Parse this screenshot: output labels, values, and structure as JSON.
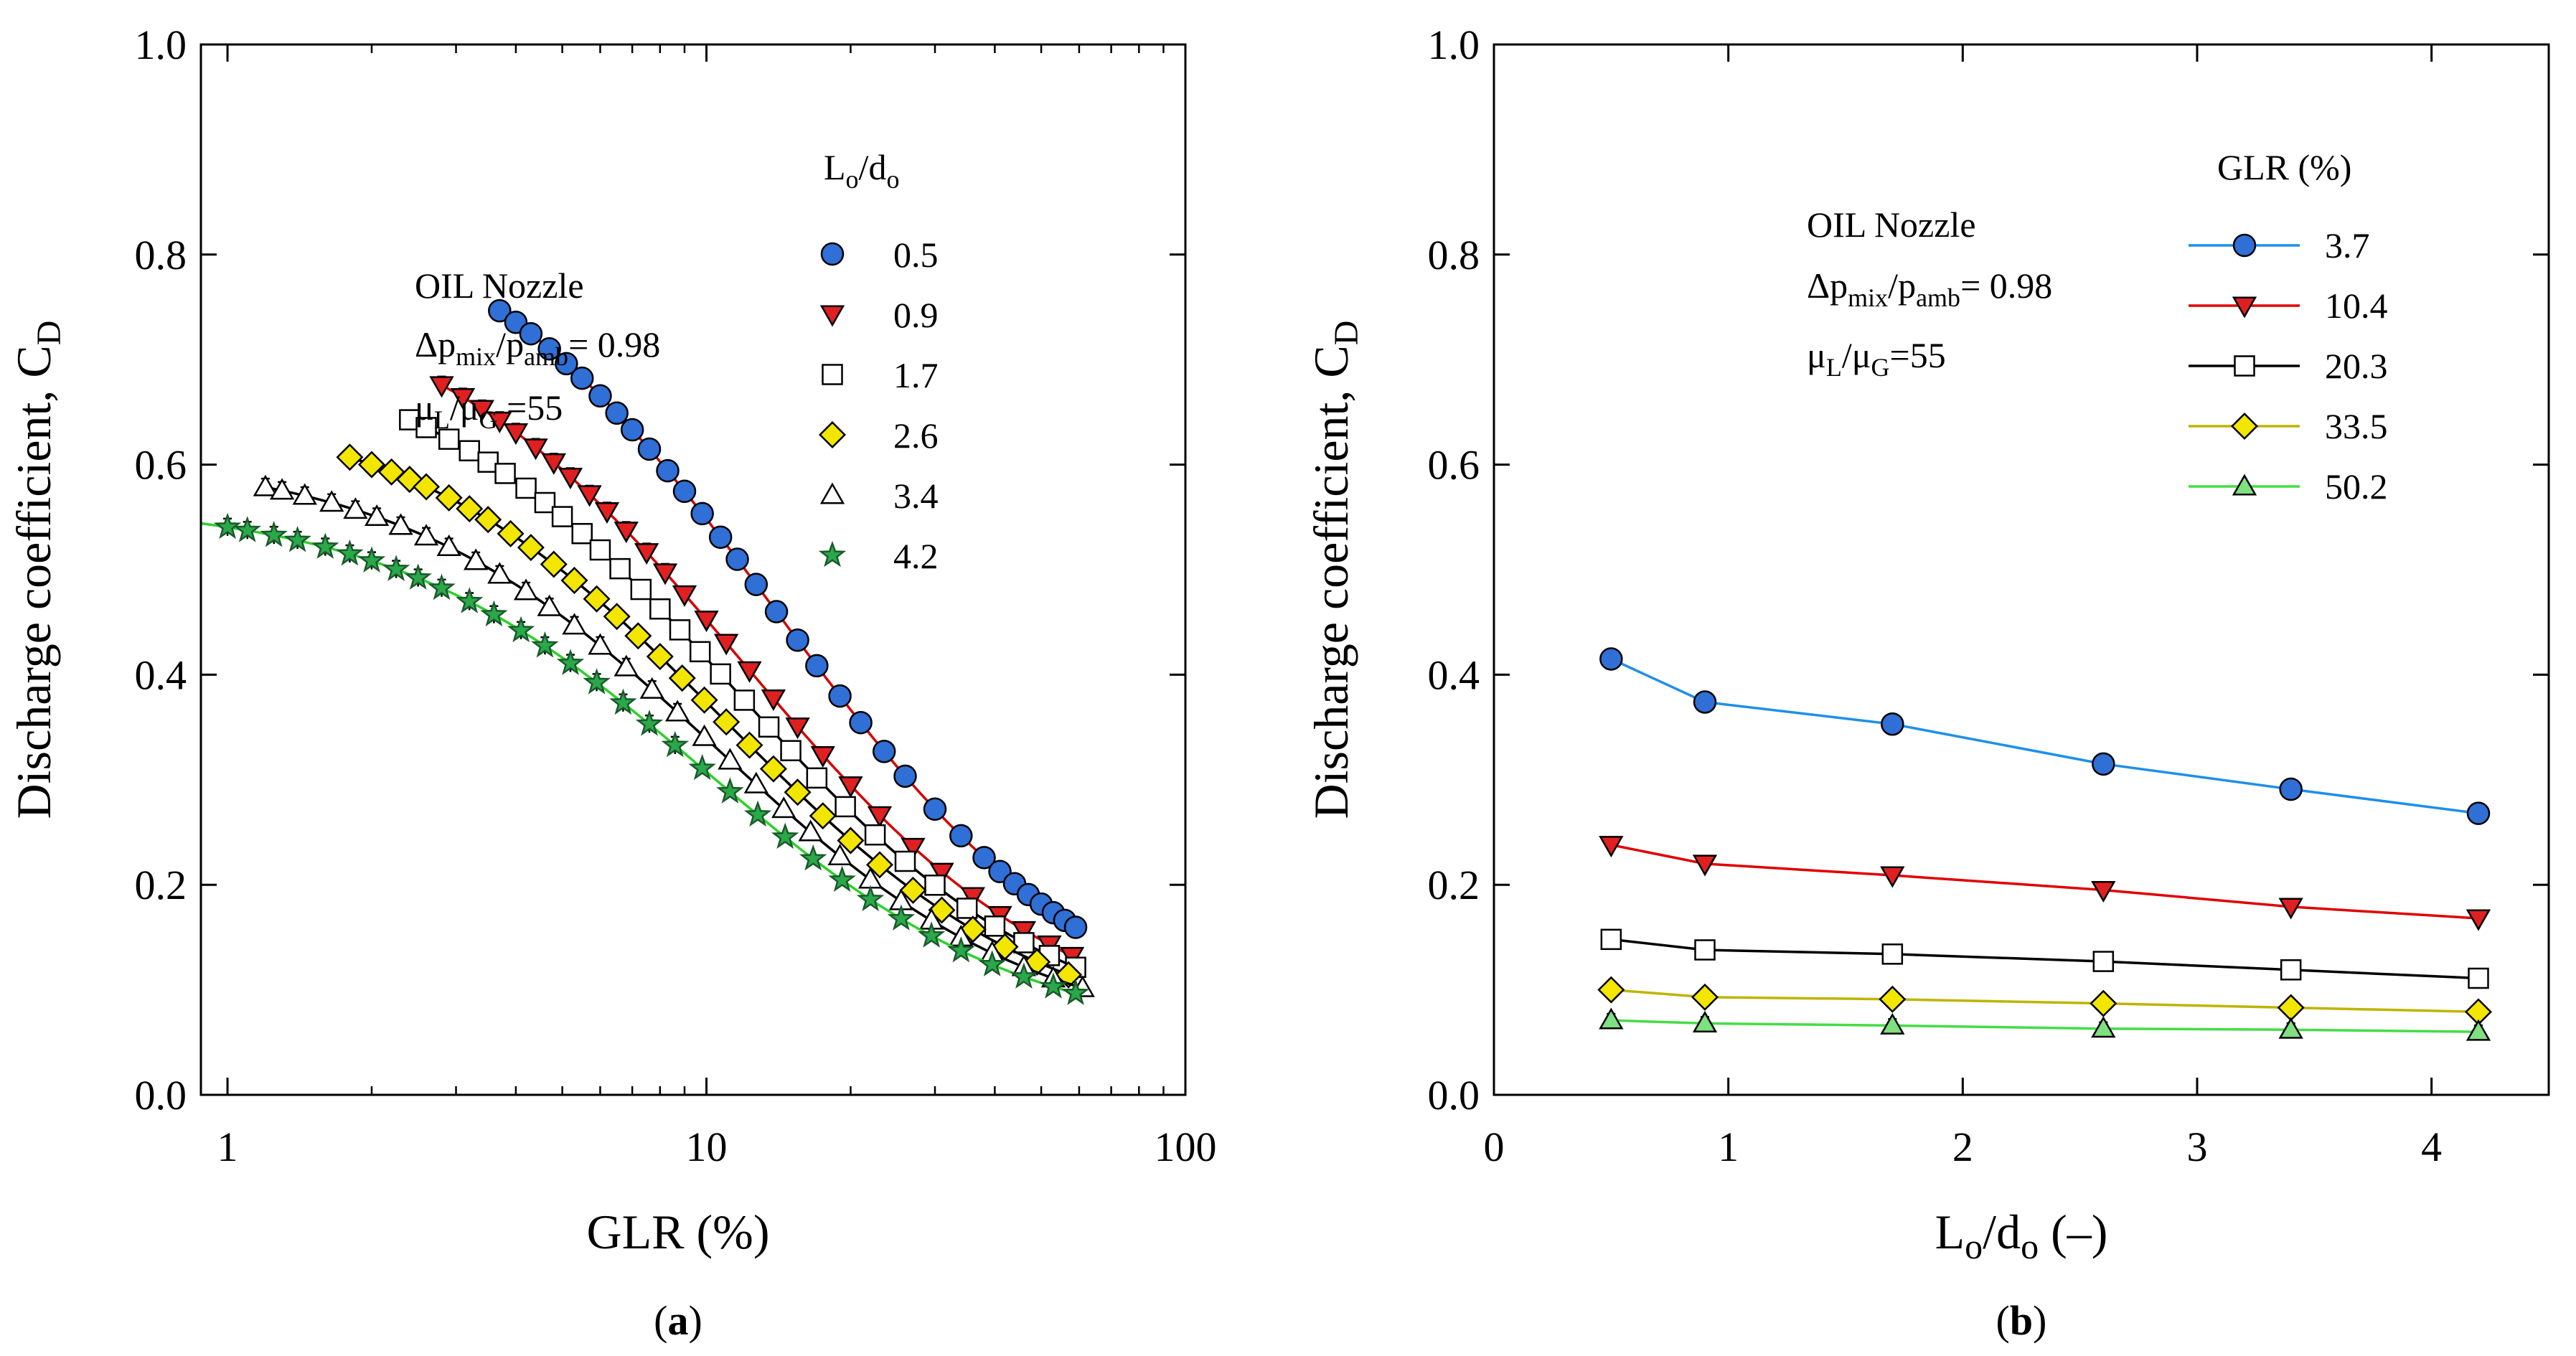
{
  "chart_data": [
    {
      "panel_label_left": "(",
      "panel_label_letter": "a",
      "panel_label_right": ")",
      "type": "scatter",
      "xscale": "log",
      "xlim": [
        0.88,
        100
      ],
      "ylim": [
        0,
        1.0
      ],
      "xlabel": "GLR (%)",
      "ylabel": "Discharge coefficient, C",
      "ylabel_sub": "D",
      "xticks": [
        "1",
        "10",
        "100"
      ],
      "yticks": [
        "0.0",
        "0.2",
        "0.4",
        "0.6",
        "0.8",
        "1.0"
      ],
      "annotation": {
        "line1": "OIL Nozzle",
        "line2_a": "Δp",
        "line2_b": "mix",
        "line2_c": "/p",
        "line2_d": "amb",
        "line2_e": "= 0.98",
        "line3_a": "μ",
        "line3_b": "L",
        "line3_c": "/μ",
        "line3_d": "G",
        "line3_e": " =55"
      },
      "legend_title": {
        "a": "L",
        "b": "o",
        "c": "/d",
        "d": "o"
      },
      "legend_position": "top-right",
      "series": [
        {
          "name": "0.5",
          "marker": "circle",
          "fill": "#2f6fd6",
          "stroke": "#000000",
          "line": "#d40000",
          "a": 0.87,
          "b": 0.14,
          "x": [
            3.7,
            4.0,
            4.3,
            4.7,
            5.1,
            5.5,
            6.0,
            6.5,
            7.0,
            7.6,
            8.3,
            9.0,
            9.8,
            10.7,
            11.6,
            12.7,
            14.0,
            15.5,
            17.0,
            19.0,
            21.0,
            23.5,
            26.0,
            30.0,
            34.0,
            38.0,
            41.0,
            44.0,
            47.0,
            50.0,
            53.0,
            56.0,
            59.0
          ]
        },
        {
          "name": "0.9",
          "marker": "triangle-down",
          "fill": "#e02020",
          "stroke": "#000000",
          "line": "#d40000",
          "a": 0.77,
          "b": 0.12,
          "x": [
            2.8,
            3.1,
            3.4,
            3.7,
            4.0,
            4.4,
            4.8,
            5.2,
            5.7,
            6.2,
            6.8,
            7.5,
            8.2,
            9.0,
            10.0,
            11.0,
            12.3,
            13.8,
            15.5,
            17.5,
            20.0,
            23.0,
            27.0,
            31.0,
            36.0,
            41.0,
            46.0,
            52.0,
            58.0
          ]
        },
        {
          "name": "1.7",
          "marker": "square",
          "fill": "#ffffff",
          "stroke": "#000000",
          "line": "#000000",
          "a": 0.72,
          "b": 0.115,
          "x": [
            2.4,
            2.6,
            2.9,
            3.2,
            3.5,
            3.8,
            4.2,
            4.6,
            5.0,
            5.5,
            6.0,
            6.6,
            7.3,
            8.0,
            8.8,
            9.7,
            10.7,
            12.0,
            13.5,
            15.0,
            17.0,
            19.5,
            22.5,
            26.0,
            30.0,
            35.0,
            40.0,
            46.0,
            52.0,
            59.0
          ]
        },
        {
          "name": "2.6",
          "marker": "diamond",
          "fill": "#f2e600",
          "stroke": "#000000",
          "line": "#000000",
          "a": 0.66,
          "b": 0.11,
          "x": [
            1.8,
            2.0,
            2.2,
            2.4,
            2.6,
            2.9,
            3.2,
            3.5,
            3.9,
            4.3,
            4.8,
            5.3,
            5.9,
            6.5,
            7.2,
            8.0,
            8.9,
            9.9,
            11.0,
            12.3,
            13.8,
            15.5,
            17.5,
            20.0,
            23.0,
            27.0,
            31.0,
            36.0,
            42.0,
            49.0,
            57.0
          ]
        },
        {
          "name": "3.4",
          "marker": "triangle-up",
          "fill": "#ffffff",
          "stroke": "#000000",
          "line": "#000000",
          "a": 0.61,
          "b": 0.105,
          "x": [
            1.2,
            1.3,
            1.45,
            1.65,
            1.85,
            2.05,
            2.3,
            2.6,
            2.9,
            3.3,
            3.7,
            4.2,
            4.7,
            5.3,
            6.0,
            6.8,
            7.7,
            8.7,
            9.9,
            11.2,
            12.7,
            14.5,
            16.5,
            19.0,
            22.0,
            25.5,
            29.5,
            34.0,
            39.5,
            46.0,
            53.0,
            61.0
          ]
        },
        {
          "name": "4.2",
          "marker": "star",
          "fill": "#2aa84a",
          "stroke": "#1a5a2a",
          "line": "#2bd12b",
          "a": 0.565,
          "b": 0.1,
          "x": [
            1.0,
            1.1,
            1.25,
            1.4,
            1.6,
            1.8,
            2.0,
            2.25,
            2.5,
            2.8,
            3.2,
            3.6,
            4.1,
            4.6,
            5.2,
            5.9,
            6.7,
            7.6,
            8.6,
            9.8,
            11.2,
            12.8,
            14.6,
            16.7,
            19.2,
            22.0,
            25.5,
            29.5,
            34.0,
            39.5,
            46.0,
            53.0,
            59.0
          ]
        }
      ]
    },
    {
      "panel_label_left": "(",
      "panel_label_letter": "b",
      "panel_label_right": ")",
      "type": "line",
      "xlim": [
        0,
        4.5
      ],
      "ylim": [
        0,
        1.0
      ],
      "xlabel": {
        "a": "L",
        "b": "o",
        "c": "/d",
        "d": "o",
        "e": " (–)"
      },
      "ylabel": "Discharge coefficient, C",
      "ylabel_sub": "D",
      "xticks": [
        "0",
        "1",
        "2",
        "3",
        "4"
      ],
      "yticks": [
        "0.0",
        "0.2",
        "0.4",
        "0.6",
        "0.8",
        "1.0"
      ],
      "annotation": {
        "line1": "OIL Nozzle",
        "line2_a": "Δp",
        "line2_b": "mix",
        "line2_c": "/p",
        "line2_d": "amb",
        "line2_e": "= 0.98",
        "line3_a": "μ",
        "line3_b": "L",
        "line3_c": "/μ",
        "line3_d": "G",
        "line3_e": "=55"
      },
      "legend_title": "GLR (%)",
      "legend_position": "top-right",
      "x": [
        0.5,
        0.9,
        1.7,
        2.6,
        3.4,
        4.2
      ],
      "series": [
        {
          "name": "3.7",
          "marker": "circle",
          "fill": "#2f6fd6",
          "line": "#1f8fe8",
          "values": [
            0.415,
            0.374,
            0.353,
            0.315,
            0.291,
            0.268
          ]
        },
        {
          "name": "10.4",
          "marker": "triangle-down",
          "fill": "#e02020",
          "line": "#e00000",
          "values": [
            0.238,
            0.22,
            0.209,
            0.195,
            0.179,
            0.168
          ]
        },
        {
          "name": "20.3",
          "marker": "square",
          "fill": "#ffffff",
          "line": "#000000",
          "values": [
            0.148,
            0.138,
            0.134,
            0.127,
            0.119,
            0.111
          ]
        },
        {
          "name": "33.5",
          "marker": "diamond",
          "fill": "#f2e600",
          "line": "#bfb400",
          "values": [
            0.1,
            0.093,
            0.091,
            0.087,
            0.083,
            0.079
          ]
        },
        {
          "name": "50.2",
          "marker": "triangle-up",
          "fill": "#7ee07e",
          "line": "#44dd44",
          "values": [
            0.071,
            0.068,
            0.066,
            0.063,
            0.062,
            0.06
          ]
        }
      ]
    }
  ]
}
